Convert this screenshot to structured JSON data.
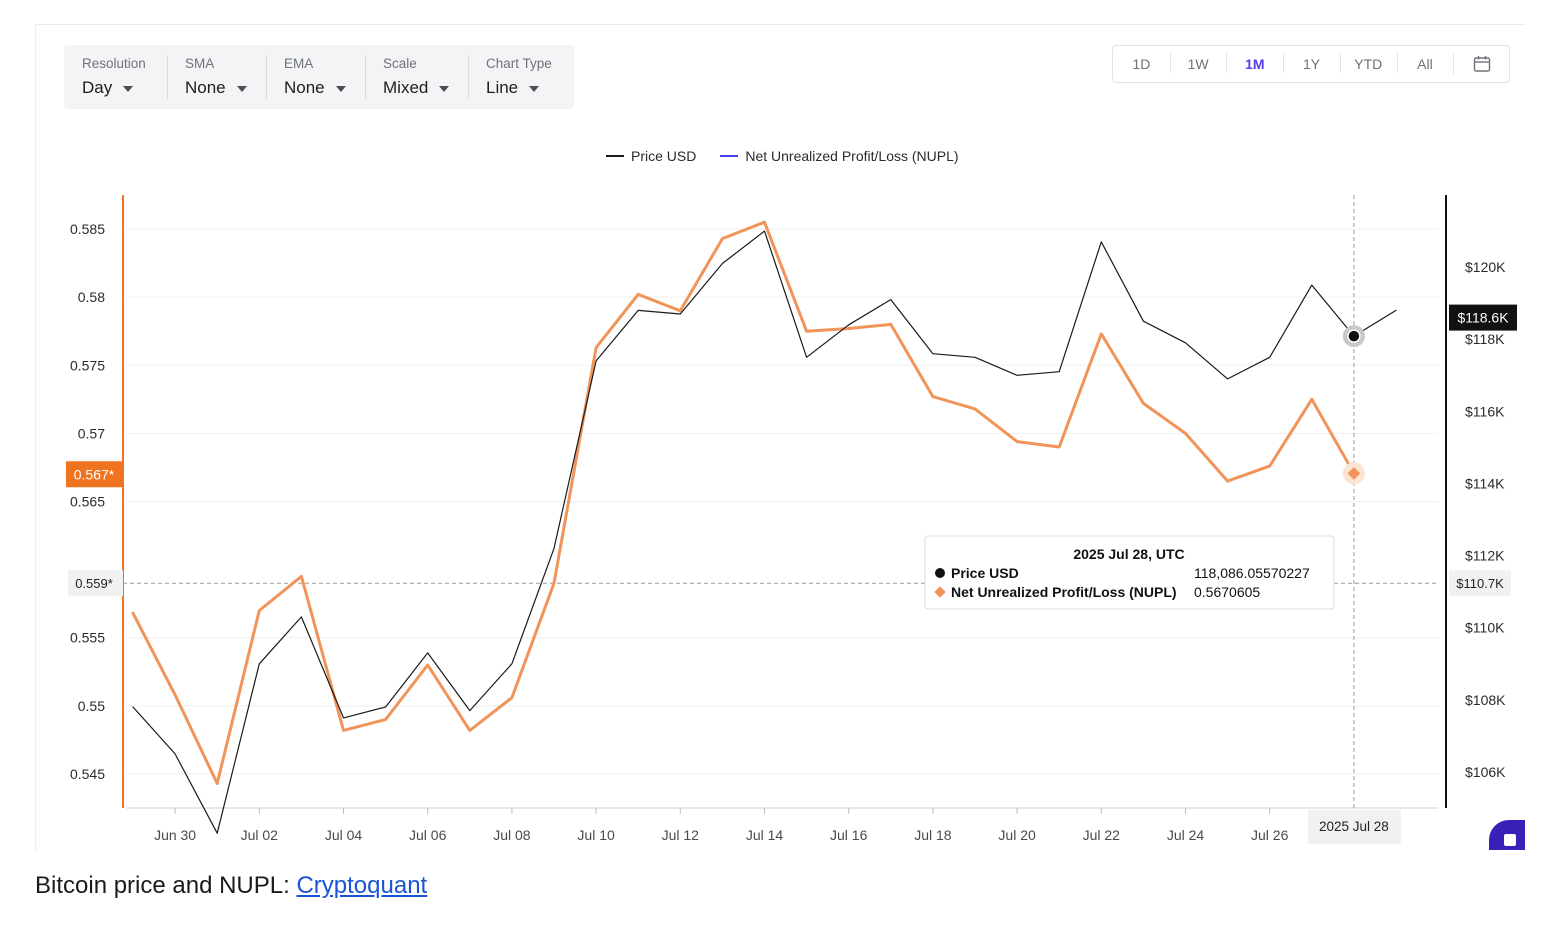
{
  "toolbar": {
    "resolution": {
      "label": "Resolution",
      "value": "Day"
    },
    "sma": {
      "label": "SMA",
      "value": "None"
    },
    "ema": {
      "label": "EMA",
      "value": "None"
    },
    "scale": {
      "label": "Scale",
      "value": "Mixed"
    },
    "chart_type": {
      "label": "Chart Type",
      "value": "Line"
    }
  },
  "ranges": {
    "items": [
      "1D",
      "1W",
      "1M",
      "1Y",
      "YTD",
      "All"
    ],
    "active": "1M",
    "calendar_icon": "calendar-icon"
  },
  "colors": {
    "price": "#1a1a1a",
    "nupl": "#f0945a",
    "nupl_axis": "#f07320",
    "nupl_legend": "#4b3be8",
    "accent": "#5b3be0"
  },
  "chart_data": {
    "type": "line",
    "x": [
      "Jun 29",
      "Jun 30",
      "Jul 01",
      "Jul 02",
      "Jul 03",
      "Jul 04",
      "Jul 05",
      "Jul 06",
      "Jul 07",
      "Jul 08",
      "Jul 09",
      "Jul 10",
      "Jul 11",
      "Jul 12",
      "Jul 13",
      "Jul 14",
      "Jul 15",
      "Jul 16",
      "Jul 17",
      "Jul 18",
      "Jul 19",
      "Jul 20",
      "Jul 21",
      "Jul 22",
      "Jul 23",
      "Jul 24",
      "Jul 25",
      "Jul 26",
      "Jul 27",
      "Jul 28",
      "Jul 29"
    ],
    "xticks": [
      "Jun 30",
      "Jul 02",
      "Jul 04",
      "Jul 06",
      "Jul 08",
      "Jul 10",
      "Jul 12",
      "Jul 14",
      "Jul 16",
      "Jul 18",
      "Jul 20",
      "Jul 22",
      "Jul 24",
      "Jul 26"
    ],
    "series": [
      {
        "name": "Price USD",
        "axis": "right",
        "values": [
          107800,
          106500,
          104300,
          109000,
          110300,
          107500,
          107800,
          109300,
          107700,
          109000,
          112200,
          117400,
          118800,
          118700,
          120100,
          121000,
          117500,
          118400,
          119100,
          117600,
          117500,
          117000,
          117100,
          120700,
          118500,
          117900,
          116900,
          117500,
          119500,
          118086,
          118800
        ]
      },
      {
        "name": "Net Unrealized Profit/Loss (NUPL)",
        "axis": "left",
        "values": [
          0.5568,
          0.5508,
          0.5443,
          0.557,
          0.5595,
          0.5482,
          0.549,
          0.553,
          0.5482,
          0.5506,
          0.559,
          0.5763,
          0.5802,
          0.579,
          0.5843,
          0.5855,
          0.5775,
          0.5777,
          0.578,
          0.5727,
          0.5718,
          0.5694,
          0.569,
          0.5773,
          0.5722,
          0.57,
          0.5665,
          0.5676,
          0.5725,
          0.5670605,
          null
        ]
      }
    ],
    "left_axis": {
      "ticks": [
        "0.585",
        "0.58",
        "0.575",
        "0.57",
        "0.565",
        "0.555",
        "0.55",
        "0.545"
      ],
      "ylim": [
        0.5425,
        0.5875
      ]
    },
    "right_axis": {
      "ticks": [
        "$120K",
        "$118K",
        "$116K",
        "$114K",
        "$112K",
        "$110K",
        "$108K",
        "$106K"
      ],
      "ylim": [
        105000,
        122000
      ]
    },
    "left_marker": "0.567*",
    "crosshair_left": "0.559*",
    "right_marker": "$118.6K",
    "crosshair_right": "$110.7K",
    "crosshair_date": "2025 Jul 28",
    "legend_position": "top-center",
    "grid": true,
    "tooltip": {
      "title": "2025 Jul 28, UTC",
      "rows": [
        {
          "name": "Price USD",
          "value": "118,086.05570227"
        },
        {
          "name": "Net Unrealized Profit/Loss (NUPL)",
          "value": "0.5670605"
        }
      ]
    }
  },
  "caption": {
    "text": "Bitcoin price and NUPL: ",
    "link": "Cryptoquant"
  }
}
